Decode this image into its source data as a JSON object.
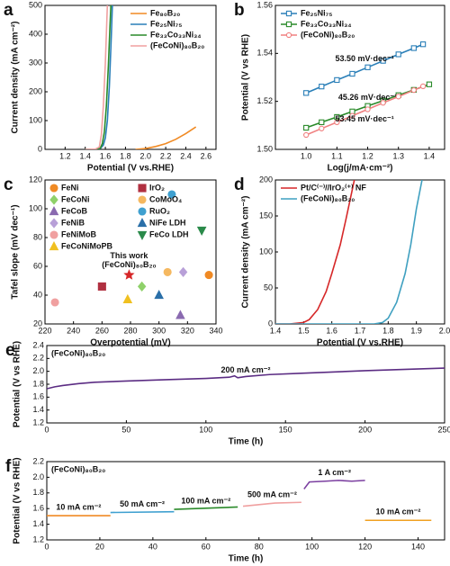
{
  "chart_data": [
    {
      "type": "line",
      "panel": "a",
      "x_label": "Potential (V vs.RHE)",
      "y_label": "Current density (mA cm⁻²)",
      "xlim": [
        1.0,
        2.7
      ],
      "xticks": [
        1.2,
        1.4,
        1.6,
        1.8,
        {
          "value": 2.0,
          "label": "2.0"
        },
        2.2,
        2.4,
        2.6
      ],
      "ylim": [
        0,
        500
      ],
      "yticks": [
        0,
        100,
        200,
        300,
        400,
        500
      ],
      "legend": "upper right",
      "series": [
        {
          "name": "Fe₈₀B₂₀",
          "color": "#f08a24",
          "x": [
            1.9,
            2.0,
            2.1,
            2.2,
            2.3,
            2.4,
            2.5
          ],
          "values": [
            0,
            3,
            10,
            20,
            35,
            55,
            78
          ]
        },
        {
          "name": "Fe₂₅Ni₇₅",
          "color": "#2a7fb8",
          "x": [
            1.4,
            1.5,
            1.55,
            1.58,
            1.6,
            1.62,
            1.64,
            1.66,
            1.67
          ],
          "values": [
            0,
            0,
            3,
            15,
            40,
            100,
            220,
            400,
            500
          ]
        },
        {
          "name": "Fe₃₃Co₃₃Ni₃₄",
          "color": "#2a8a2a",
          "x": [
            1.4,
            1.5,
            1.55,
            1.57,
            1.59,
            1.61,
            1.63,
            1.645,
            1.655
          ],
          "values": [
            0,
            0,
            4,
            20,
            60,
            150,
            290,
            420,
            500
          ]
        },
        {
          "name": "(FeCoNi)₈₀B₂₀",
          "color": "#f0a0a0",
          "x": [
            1.4,
            1.5,
            1.54,
            1.56,
            1.58,
            1.6,
            1.61,
            1.62
          ],
          "values": [
            0,
            1,
            8,
            50,
            150,
            300,
            400,
            500
          ]
        }
      ]
    },
    {
      "type": "line",
      "panel": "b",
      "x_label": "Log(j/mA·cm⁻²)",
      "y_label": "Potential (V vs RHE)",
      "markers": true,
      "xlim": [
        0.9,
        1.45
      ],
      "xticks": [
        {
          "value": 1.0,
          "label": "1.0"
        },
        1.1,
        1.2,
        1.3,
        1.4
      ],
      "ylim": [
        1.5,
        1.56
      ],
      "yticks": [
        {
          "value": 1.5,
          "label": "1.50"
        },
        1.52,
        1.54,
        1.56
      ],
      "legend": "upper left",
      "series": [
        {
          "name": "Fe₂₅Ni₇₅",
          "color": "#2a7fb8",
          "marker": "square",
          "label": "53.50 mV·dec⁻¹",
          "x": [
            1.0,
            1.05,
            1.1,
            1.15,
            1.2,
            1.25,
            1.3,
            1.35,
            1.38
          ],
          "values": [
            1.5235,
            1.5262,
            1.5289,
            1.5315,
            1.5342,
            1.5369,
            1.5396,
            1.5422,
            1.5438
          ]
        },
        {
          "name": "Fe₃₃Co₃₃Ni₃₄",
          "color": "#2a8a2a",
          "marker": "square",
          "label": "45.26 mV·dec⁻¹",
          "x": [
            1.0,
            1.05,
            1.1,
            1.15,
            1.2,
            1.25,
            1.3,
            1.35,
            1.4
          ],
          "values": [
            1.509,
            1.5113,
            1.5135,
            1.5158,
            1.5181,
            1.5203,
            1.5226,
            1.5248,
            1.5271
          ]
        },
        {
          "name": "(FeCoNi)₈₀B₂₀",
          "color": "#f08080",
          "marker": "circle",
          "label": "53.45 mV·dec⁻¹",
          "x": [
            1.0,
            1.05,
            1.1,
            1.15,
            1.2,
            1.25,
            1.3,
            1.35,
            1.38
          ],
          "values": [
            1.506,
            1.5087,
            1.5113,
            1.514,
            1.5167,
            1.5194,
            1.522,
            1.5247,
            1.5263
          ]
        }
      ]
    },
    {
      "type": "scatter",
      "panel": "c",
      "x_label": "Overpotential (mV)",
      "y_label": "Tafel slope (mV dec⁻¹)",
      "xlim": [
        220,
        340
      ],
      "xticks": [
        220,
        240,
        260,
        280,
        300,
        320,
        340
      ],
      "ylim": [
        20,
        120
      ],
      "yticks": [
        20,
        40,
        60,
        80,
        100,
        120
      ],
      "legend": "upper left",
      "series": [
        {
          "name": "FeNi",
          "color": "#f08a24",
          "marker": "circle",
          "x": [
            335
          ],
          "values": [
            54
          ]
        },
        {
          "name": "FeCoNi",
          "color": "#8fd16a",
          "marker": "diamond",
          "x": [
            288
          ],
          "values": [
            46
          ]
        },
        {
          "name": "FeCoB",
          "color": "#8a6ab0",
          "marker": "triangle",
          "x": [
            315
          ],
          "values": [
            26
          ]
        },
        {
          "name": "FeNiB",
          "color": "#b8a0d8",
          "marker": "diamond",
          "x": [
            317
          ],
          "values": [
            56
          ]
        },
        {
          "name": "FeNiMoB",
          "color": "#f0a0a0",
          "marker": "circle",
          "x": [
            227
          ],
          "values": [
            35
          ]
        },
        {
          "name": "FeCoNiMoPB",
          "color": "#f0c020",
          "marker": "triangle",
          "x": [
            278
          ],
          "values": [
            37
          ]
        },
        {
          "name": "IrO₂",
          "color": "#b03040",
          "marker": "square",
          "x": [
            260
          ],
          "values": [
            46
          ]
        },
        {
          "name": "CoMoO₄",
          "color": "#f5b860",
          "marker": "circle",
          "x": [
            306
          ],
          "values": [
            56
          ]
        },
        {
          "name": "RuO₂",
          "color": "#3fa0d0",
          "marker": "circle",
          "x": [
            309
          ],
          "values": [
            110
          ]
        },
        {
          "name": "NiFe LDH",
          "color": "#2a6fa8",
          "marker": "triangle",
          "x": [
            300
          ],
          "values": [
            40
          ]
        },
        {
          "name": "FeCo LDH",
          "color": "#2a8a4a",
          "marker": "triangle-down",
          "x": [
            330
          ],
          "values": [
            85
          ]
        }
      ],
      "highlight": {
        "label": "This work",
        "sublabel": "(FeCoNi)₈₀B₂₀",
        "color": "#d62728",
        "x": 279,
        "y": 54
      }
    },
    {
      "type": "line",
      "panel": "d",
      "x_label": "Potential (V vs.RHE)",
      "y_label": "Current density (mA cm⁻²)",
      "xlim": [
        1.4,
        2.0
      ],
      "xticks": [
        1.4,
        1.5,
        1.6,
        1.7,
        1.8,
        1.9,
        {
          "value": 2.0,
          "label": "2.0"
        }
      ],
      "ylim": [
        0,
        200
      ],
      "yticks": [
        0,
        50,
        100,
        150,
        200
      ],
      "legend": "upper left",
      "series": [
        {
          "name": "Pt/C⁽⁻⁾//IrO₂⁽⁺⁾ NF",
          "color": "#d62728",
          "x": [
            1.4,
            1.45,
            1.5,
            1.52,
            1.55,
            1.58,
            1.6,
            1.63,
            1.65,
            1.68
          ],
          "values": [
            0,
            0,
            2,
            6,
            20,
            45,
            70,
            110,
            145,
            200
          ]
        },
        {
          "name": "(FeCoNi)₈₀B₂₀",
          "color": "#3fa0c0",
          "x": [
            1.4,
            1.75,
            1.78,
            1.8,
            1.83,
            1.86,
            1.88,
            1.9,
            1.92
          ],
          "values": [
            0,
            0,
            2,
            8,
            30,
            70,
            110,
            160,
            200
          ]
        }
      ]
    },
    {
      "type": "line",
      "panel": "e",
      "x_label": "Time (h)",
      "y_label": "Potential (V vs RHE)",
      "note": "(FeCoNi)₈₀B₂₀",
      "xlim": [
        0,
        250
      ],
      "xticks": [
        0,
        50,
        100,
        150,
        200,
        250
      ],
      "ylim": [
        1.2,
        2.4
      ],
      "yticks": [
        1.2,
        1.4,
        1.6,
        1.8,
        {
          "value": 2.0,
          "label": "2.0"
        },
        2.2,
        2.4
      ],
      "series": [
        {
          "color": "#5b2c83",
          "label": "200 mA cm⁻²",
          "x": [
            0,
            5,
            10,
            20,
            30,
            50,
            75,
            100,
            115,
            118,
            120,
            125,
            140,
            160,
            200,
            250
          ],
          "values": [
            1.73,
            1.76,
            1.78,
            1.81,
            1.83,
            1.85,
            1.87,
            1.89,
            1.91,
            1.93,
            1.9,
            1.92,
            1.95,
            1.97,
            2.01,
            2.05
          ]
        }
      ]
    },
    {
      "type": "line",
      "panel": "f",
      "x_label": "Time (h)",
      "y_label": "Potential (V vs RHE)",
      "note": "(FeCoNi)₈₀B₂₀",
      "xlim": [
        0,
        150
      ],
      "xticks": [
        0,
        20,
        40,
        60,
        80,
        100,
        120,
        140
      ],
      "ylim": [
        1.2,
        2.2
      ],
      "yticks": [
        1.2,
        1.4,
        1.6,
        1.8,
        {
          "value": 2.0,
          "label": "2.0"
        },
        2.2
      ],
      "series": [
        {
          "color": "#f08a24",
          "label": "10 mA cm⁻²",
          "x": [
            0,
            24
          ],
          "values": [
            1.51,
            1.51
          ]
        },
        {
          "color": "#3fa0d0",
          "label": "50 mA cm⁻²",
          "x": [
            24,
            48
          ],
          "values": [
            1.55,
            1.56
          ]
        },
        {
          "color": "#2a8a2a",
          "label": "100 mA cm⁻²",
          "x": [
            48,
            72
          ],
          "values": [
            1.59,
            1.62
          ]
        },
        {
          "color": "#f0a0a0",
          "label": "500 mA cm⁻²",
          "x": [
            74,
            86,
            96
          ],
          "values": [
            1.63,
            1.67,
            1.68
          ]
        },
        {
          "color": "#7b3fa0",
          "label": "1 A cm⁻²",
          "x": [
            97,
            99,
            105,
            110,
            115,
            120
          ],
          "values": [
            1.85,
            1.94,
            1.95,
            1.96,
            1.95,
            1.96
          ]
        },
        {
          "color": "#f0a020",
          "label": "10 mA cm⁻²",
          "x": [
            120,
            145
          ],
          "values": [
            1.45,
            1.45
          ]
        }
      ]
    }
  ]
}
